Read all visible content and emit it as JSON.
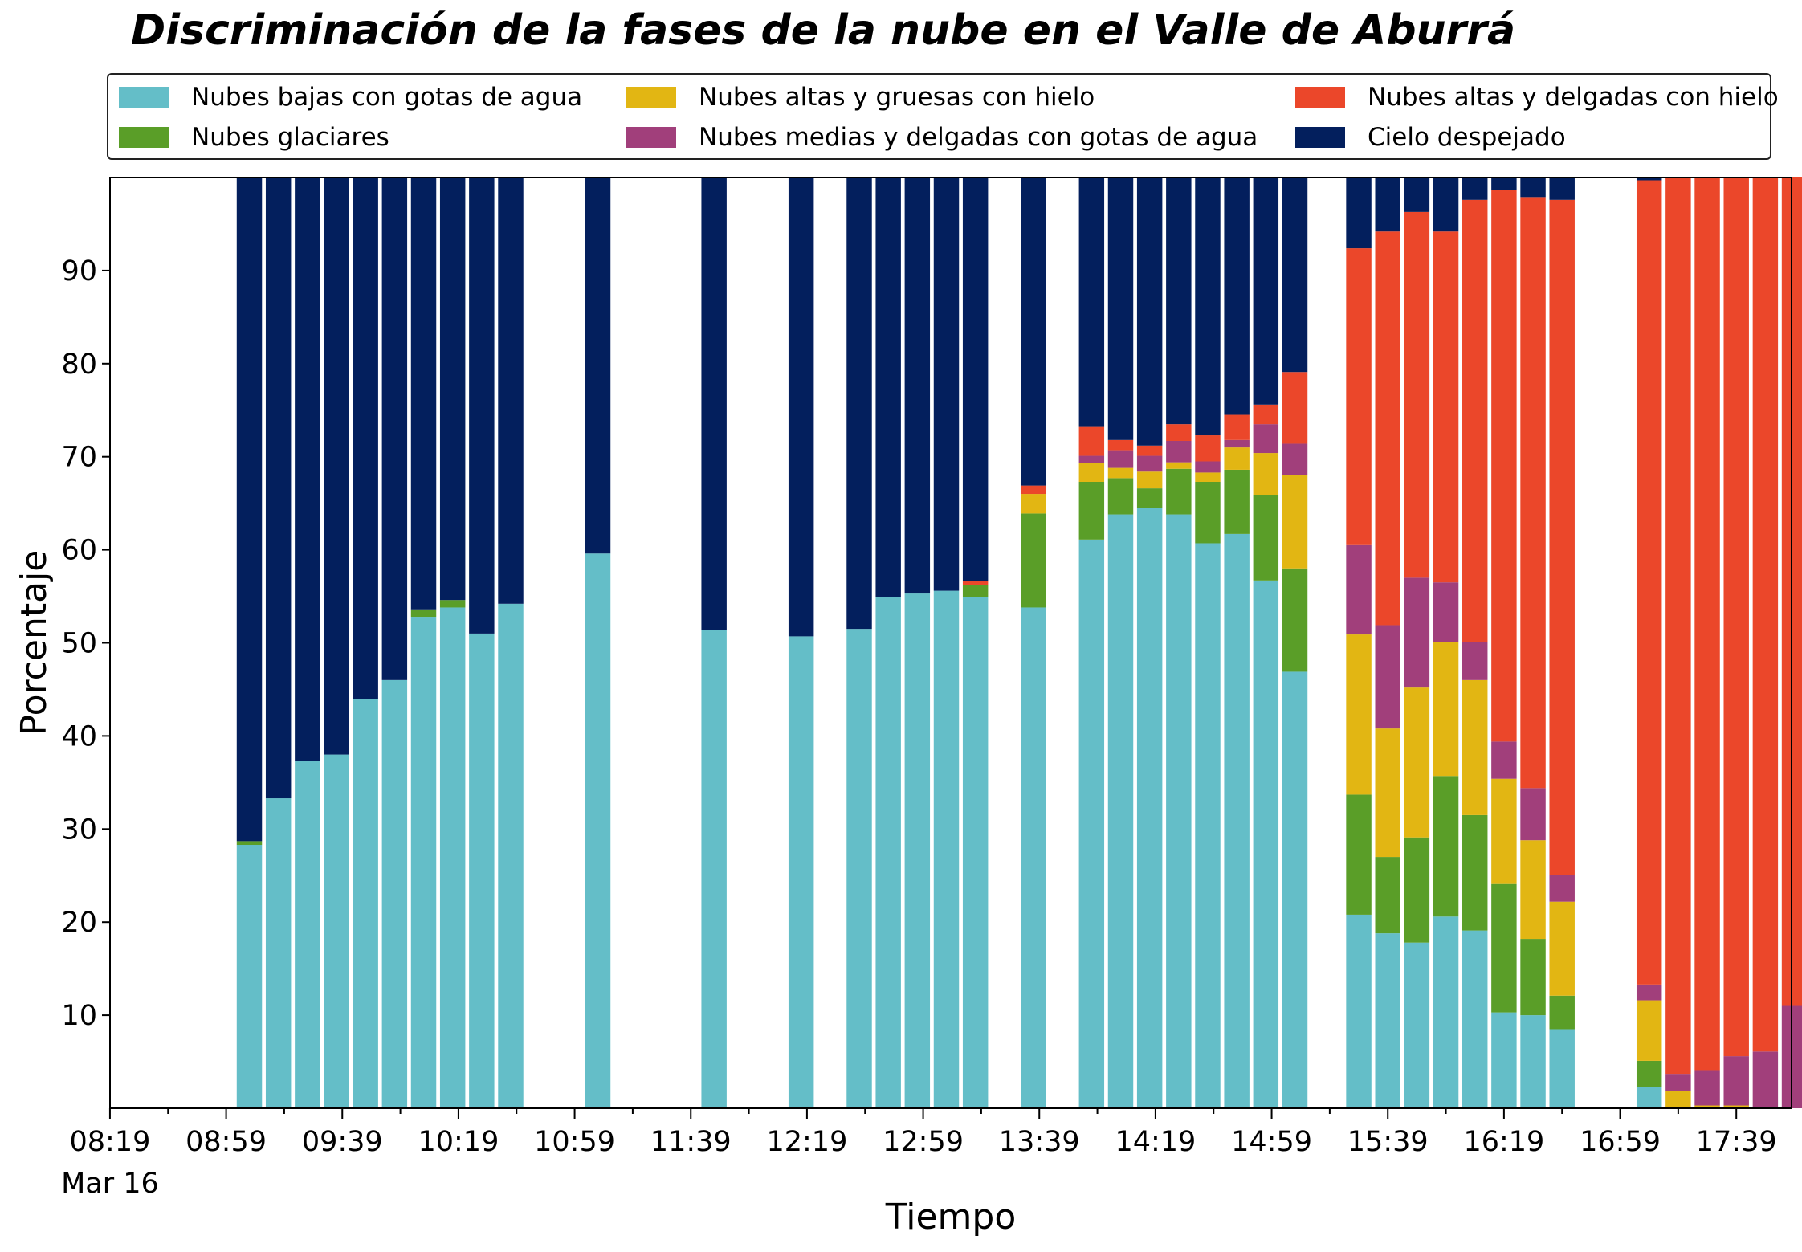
{
  "chart_data": {
    "type": "bar",
    "stacked": true,
    "title": "Discriminación de la fases de la nube en el Valle de Aburrá",
    "xlabel": "Tiempo",
    "ylabel": "Porcentaje",
    "ylim": [
      0,
      100
    ],
    "yticks": [
      10,
      20,
      30,
      40,
      50,
      60,
      70,
      80,
      90
    ],
    "xlim": [
      8.317,
      17.967
    ],
    "xtick_labels": [
      "08:19",
      "08:59",
      "09:39",
      "10:19",
      "10:59",
      "11:39",
      "12:19",
      "12:59",
      "13:39",
      "14:19",
      "14:59",
      "15:39",
      "16:19",
      "16:59",
      "17:39"
    ],
    "xtick_sublabel": "Mar 16",
    "grid": false,
    "legend_position": "top",
    "times": [
      "09:07",
      "09:17",
      "09:27",
      "09:37",
      "09:47",
      "09:57",
      "10:07",
      "10:17",
      "10:27",
      "10:37",
      "11:07",
      "11:47",
      "12:17",
      "12:37",
      "12:47",
      "12:57",
      "13:07",
      "13:17",
      "13:37",
      "13:57",
      "14:07",
      "14:17",
      "14:27",
      "14:37",
      "14:47",
      "14:57",
      "15:07",
      "15:29",
      "15:39",
      "15:49",
      "15:59",
      "16:09",
      "16:19",
      "16:29",
      "16:39",
      "17:09",
      "17:19",
      "17:29",
      "17:39",
      "17:49",
      "17:59"
    ],
    "series": [
      {
        "name": "Nubes bajas con gotas de agua",
        "color": "#64bec8",
        "values": [
          28.3,
          33.3,
          37.3,
          38.0,
          44.0,
          46.0,
          52.8,
          53.8,
          51.0,
          54.2,
          59.6,
          51.4,
          50.7,
          51.5,
          54.9,
          55.3,
          55.6,
          54.9,
          53.8,
          61.1,
          63.8,
          64.5,
          63.8,
          60.7,
          61.7,
          56.7,
          46.9,
          20.8,
          18.8,
          17.8,
          20.6,
          19.1,
          10.3,
          10.0,
          8.5,
          2.3,
          0,
          0,
          0,
          0,
          0
        ]
      },
      {
        "name": "Nubes glaciares",
        "color": "#5a9e28",
        "values": [
          0.4,
          0,
          0,
          0,
          0,
          0,
          0.8,
          0.8,
          0,
          0,
          0,
          0,
          0,
          0,
          0,
          0,
          0,
          1.3,
          10.1,
          6.2,
          3.9,
          2.1,
          4.9,
          6.6,
          6.9,
          9.2,
          11.1,
          12.9,
          8.2,
          11.3,
          15.1,
          12.4,
          13.8,
          8.2,
          3.6,
          2.8,
          0,
          0,
          0,
          0,
          0
        ]
      },
      {
        "name": "Nubes altas y gruesas con hielo",
        "color": "#e2b613",
        "values": [
          0,
          0,
          0,
          0,
          0,
          0,
          0,
          0,
          0,
          0,
          0,
          0,
          0,
          0,
          0,
          0,
          0,
          0,
          2.1,
          2.0,
          1.1,
          1.8,
          0.7,
          1.0,
          2.4,
          4.5,
          10.0,
          17.2,
          13.8,
          16.1,
          14.4,
          14.5,
          11.3,
          10.6,
          10.1,
          6.5,
          1.9,
          0.3,
          0.3,
          0,
          0
        ]
      },
      {
        "name": "Nubes medias y delgadas con gotas de agua",
        "color": "#a13f7b",
        "values": [
          0,
          0,
          0,
          0,
          0,
          0,
          0,
          0,
          0,
          0,
          0,
          0,
          0,
          0,
          0,
          0,
          0,
          0,
          0,
          0.8,
          1.9,
          1.7,
          2.3,
          1.2,
          0.8,
          3.1,
          3.4,
          9.6,
          11.1,
          11.8,
          6.4,
          4.1,
          4.0,
          5.6,
          2.9,
          1.7,
          1.8,
          3.8,
          5.3,
          6.1,
          11.0
        ]
      },
      {
        "name": "Nubes altas y delgadas con hielo",
        "color": "#eb472a",
        "values": [
          0,
          0,
          0,
          0,
          0,
          0,
          0,
          0,
          0,
          0,
          0,
          0,
          0,
          0,
          0,
          0,
          0,
          0.4,
          0.9,
          3.1,
          1.1,
          1.1,
          1.8,
          2.8,
          2.7,
          2.1,
          7.7,
          31.9,
          42.3,
          39.3,
          37.7,
          47.5,
          59.3,
          63.5,
          72.5,
          86.4,
          96.3,
          95.9,
          94.4,
          93.9,
          89.0
        ]
      },
      {
        "name": "Cielo despejado",
        "color": "#031f5d",
        "values": [
          71.3,
          66.7,
          62.7,
          62.0,
          56.0,
          54.0,
          46.4,
          45.4,
          49.0,
          45.8,
          40.4,
          48.6,
          49.3,
          48.5,
          45.1,
          44.7,
          44.4,
          43.4,
          33.1,
          26.8,
          28.2,
          28.8,
          26.5,
          27.7,
          25.5,
          24.4,
          20.9,
          7.6,
          5.8,
          3.7,
          5.8,
          2.4,
          1.3,
          2.1,
          2.4,
          0.3,
          0,
          0,
          0,
          0,
          0
        ]
      }
    ]
  }
}
